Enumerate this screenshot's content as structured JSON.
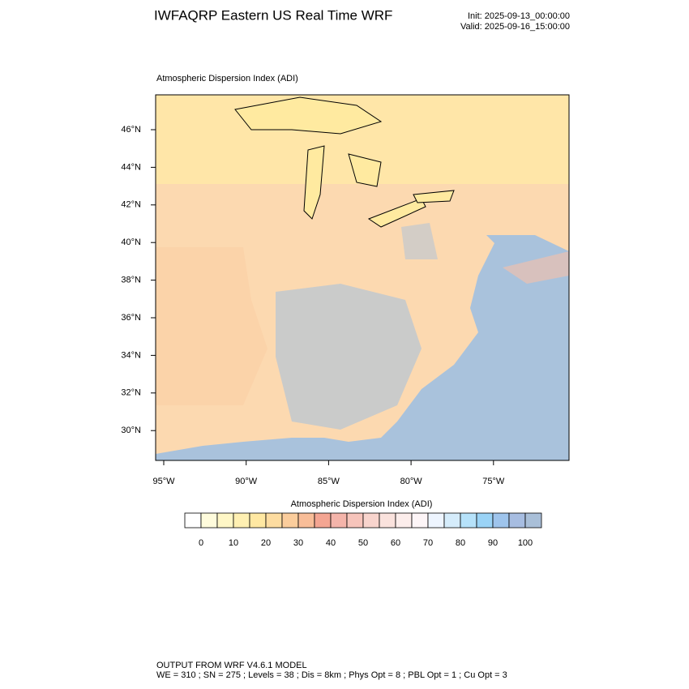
{
  "header": {
    "title": "IWFAQRP Eastern US Real Time WRF",
    "init": "Init: 2025-09-13_00:00:00",
    "valid": "Valid: 2025-09-16_15:00:00"
  },
  "map": {
    "subtitle": "Atmospheric Dispersion Index   (ADI)",
    "lat_labels": [
      "46°N",
      "44°N",
      "42°N",
      "40°N",
      "38°N",
      "36°N",
      "34°N",
      "32°N",
      "30°N"
    ],
    "lon_labels": [
      "95°W",
      "90°W",
      "85°W",
      "80°W",
      "75°W"
    ]
  },
  "colorbar": {
    "title": "Atmospheric Dispersion Index  (ADI)",
    "ticks": [
      0,
      10,
      20,
      30,
      40,
      50,
      60,
      70,
      80,
      90,
      100
    ],
    "colors": [
      "#ffffff",
      "#fffcdc",
      "#fff7c6",
      "#fff0b2",
      "#ffe8a2",
      "#fddca0",
      "#fbcd9c",
      "#f8bd98",
      "#f4a592",
      "#f4b4aa",
      "#f6c4bb",
      "#f8d4cd",
      "#fae2dd",
      "#fcedeb",
      "#fdf5f7",
      "#eef5ff",
      "#d5ecfb",
      "#b6e2fa",
      "#9ad3f6",
      "#9ec4ec",
      "#a7bde1",
      "#a9bfd8"
    ]
  },
  "footer": {
    "line1": "OUTPUT FROM WRF V4.6.1 MODEL",
    "line2": "WE = 310 ; SN = 275 ; Levels = 38 ; Dis = 8km ; Phys Opt = 8 ; PBL Opt = 1 ; Cu Opt = 3"
  }
}
